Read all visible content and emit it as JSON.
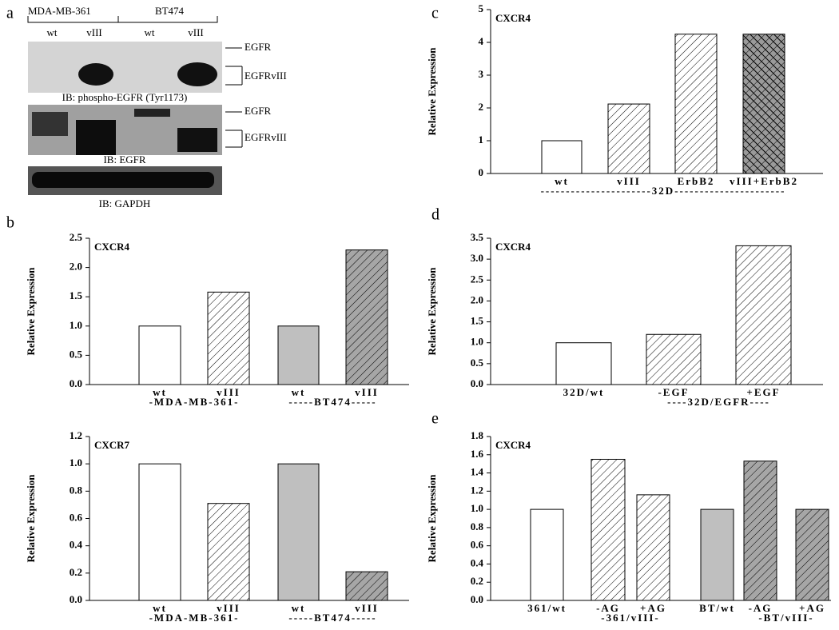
{
  "blot": {
    "label": "a",
    "cell_lines": [
      "MDA-MB-361",
      "BT474"
    ],
    "lanes": [
      "wt",
      "vIII",
      "wt",
      "vIII"
    ],
    "panel1": {
      "bands": [
        "EGFR",
        "EGFRvIII"
      ],
      "caption": "IB: phospho-EGFR (Tyr1173)"
    },
    "panel2": {
      "bands": [
        "EGFR",
        "EGFRvIII"
      ],
      "caption": "IB: EGFR"
    },
    "panel3": {
      "caption": "IB: GAPDH"
    }
  },
  "chart_data": [
    {
      "type": "bar",
      "label": "b",
      "title": "CXCR4",
      "y_label": "Relative Expression",
      "categories": [
        "wt",
        "vIII",
        "wt",
        "vIII"
      ],
      "values": [
        1.0,
        1.58,
        1.0,
        2.3
      ],
      "colors": [
        "#ffffff",
        "#ffffff",
        "#bfbfbf",
        "#a6a6a6"
      ],
      "hatch": [
        "none",
        "diagonal",
        "none",
        "diagonal"
      ],
      "groups": [
        {
          "label": "-MDA-MB-361-",
          "span": [
            0,
            1
          ]
        },
        {
          "label": "-----BT474-----",
          "span": [
            2,
            3
          ]
        }
      ],
      "ylim": [
        0,
        2.5
      ],
      "yticks": [
        {
          "value": 0,
          "label": "0.0"
        },
        {
          "value": 0.5,
          "label": "0.5"
        },
        {
          "value": 1,
          "label": "1.0"
        },
        {
          "value": 1.5,
          "label": "1.5"
        },
        {
          "value": 2,
          "label": "2.0"
        },
        {
          "value": 2.5,
          "label": "2.5"
        }
      ]
    },
    {
      "type": "bar",
      "title": "CXCR7",
      "y_label": "Relative Expression",
      "categories": [
        "wt",
        "vIII",
        "wt",
        "vIII"
      ],
      "values": [
        1.0,
        0.71,
        1.0,
        0.21
      ],
      "colors": [
        "#ffffff",
        "#ffffff",
        "#bfbfbf",
        "#a6a6a6"
      ],
      "hatch": [
        "none",
        "diagonal",
        "none",
        "diagonal"
      ],
      "groups": [
        {
          "label": "-MDA-MB-361-",
          "span": [
            0,
            1
          ]
        },
        {
          "label": "-----BT474-----",
          "span": [
            2,
            3
          ]
        }
      ],
      "ylim": [
        0,
        1.2
      ],
      "yticks": [
        {
          "value": 0,
          "label": "0.0"
        },
        {
          "value": 0.2,
          "label": "0.2"
        },
        {
          "value": 0.4,
          "label": "0.4"
        },
        {
          "value": 0.6,
          "label": "0.6"
        },
        {
          "value": 0.8,
          "label": "0.8"
        },
        {
          "value": 1,
          "label": "1.0"
        },
        {
          "value": 1.2,
          "label": "1.2"
        }
      ]
    },
    {
      "type": "bar",
      "label": "c",
      "title": "CXCR4",
      "y_label": "Relative Expression",
      "categories": [
        "wt",
        "vIII",
        "ErbB2",
        "vIII+ErbB2"
      ],
      "values": [
        1.0,
        2.12,
        4.25,
        4.25
      ],
      "colors": [
        "#ffffff",
        "#ffffff",
        "#ffffff",
        "#9a9a9a"
      ],
      "hatch": [
        "none",
        "diagonal",
        "diagonal",
        "cross"
      ],
      "groups": [
        {
          "label": "----------------------32D----------------------",
          "span": [
            0,
            3
          ]
        }
      ],
      "ylim": [
        0,
        5
      ],
      "yticks": [
        0,
        1,
        2,
        3,
        4,
        5
      ]
    },
    {
      "type": "bar",
      "label": "d",
      "title": "CXCR4",
      "y_label": "Relative Expression",
      "categories": [
        "32D/wt",
        "-EGF",
        "+EGF"
      ],
      "values": [
        1.0,
        1.2,
        3.32
      ],
      "colors": [
        "#ffffff",
        "#ffffff",
        "#ffffff"
      ],
      "hatch": [
        "none",
        "diagonal",
        "diagonal"
      ],
      "groups": [
        {
          "label": "----32D/EGFR----",
          "span": [
            1,
            2
          ]
        }
      ],
      "ylim": [
        0,
        3.5
      ],
      "yticks": [
        {
          "value": 0,
          "label": "0.0"
        },
        {
          "value": 0.5,
          "label": "0.5"
        },
        {
          "value": 1,
          "label": "1.0"
        },
        {
          "value": 1.5,
          "label": "1.5"
        },
        {
          "value": 2,
          "label": "2.0"
        },
        {
          "value": 2.5,
          "label": "2.5"
        },
        {
          "value": 3,
          "label": "3.0"
        },
        {
          "value": 3.5,
          "label": "3.5"
        }
      ]
    },
    {
      "type": "bar",
      "label": "e",
      "title": "CXCR4",
      "y_label": "Relative Expression",
      "categories": [
        "361/wt",
        "-AG",
        "+AG",
        "BT/wt",
        "-AG",
        "+AG"
      ],
      "values": [
        1.0,
        1.55,
        1.16,
        1.0,
        1.53,
        1.0
      ],
      "colors": [
        "#ffffff",
        "#ffffff",
        "#ffffff",
        "#bfbfbf",
        "#a6a6a6",
        "#a6a6a6"
      ],
      "hatch": [
        "none",
        "diagonal",
        "diagonal",
        "none",
        "diagonal",
        "diagonal"
      ],
      "groups": [
        {
          "label": "-361/vIII-",
          "span": [
            1,
            2
          ]
        },
        {
          "label": "-BT/vIII-",
          "span": [
            4,
            5
          ]
        }
      ],
      "ylim": [
        0,
        1.8
      ],
      "yticks": [
        {
          "value": 0,
          "label": "0.0"
        },
        {
          "value": 0.2,
          "label": "0.2"
        },
        {
          "value": 0.4,
          "label": "0.4"
        },
        {
          "value": 0.6,
          "label": "0.6"
        },
        {
          "value": 0.8,
          "label": "0.8"
        },
        {
          "value": 1,
          "label": "1.0"
        },
        {
          "value": 1.2,
          "label": "1.2"
        },
        {
          "value": 1.4,
          "label": "1.4"
        },
        {
          "value": 1.6,
          "label": "1.6"
        },
        {
          "value": 1.8,
          "label": "1.8"
        }
      ]
    }
  ]
}
